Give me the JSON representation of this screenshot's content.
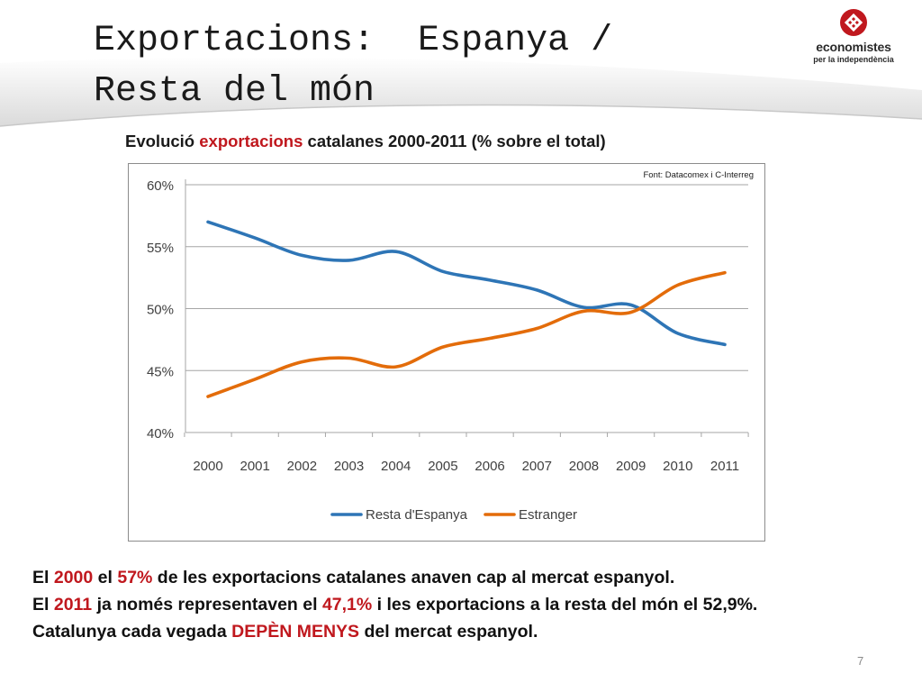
{
  "slide": {
    "title_line1": "Exportacions:  Espanya /",
    "title_line2": "Resta del món",
    "page_number": "7"
  },
  "logo": {
    "name": "economistes",
    "tagline": "per la independència",
    "colors": {
      "mark": "#c0181e",
      "text": "#2a2a2a"
    }
  },
  "chart_heading": {
    "part1": "Evolució ",
    "part2": "exportacions",
    "part3": " catalanes 2000-2011  (% sobre el total)"
  },
  "chart_data": {
    "type": "line",
    "title": "Evolució exportacions catalanes 2000-2011 (% sobre el total)",
    "source_note": "Font: Datacomex i C-Interreg",
    "x": [
      "2000",
      "2001",
      "2002",
      "2003",
      "2004",
      "2005",
      "2006",
      "2007",
      "2008",
      "2009",
      "2010",
      "2011"
    ],
    "series": [
      {
        "name": "Resta d'Espanya",
        "color": "#2e75b6",
        "values": [
          57.0,
          55.7,
          54.3,
          53.9,
          54.6,
          53.0,
          52.3,
          51.5,
          50.1,
          50.3,
          48.0,
          47.1
        ]
      },
      {
        "name": "Estranger",
        "color": "#e36c0a",
        "values": [
          42.9,
          44.3,
          45.7,
          46.0,
          45.3,
          46.9,
          47.6,
          48.4,
          49.8,
          49.7,
          51.9,
          52.9
        ]
      }
    ],
    "y_ticks": [
      "40%",
      "45%",
      "50%",
      "55%",
      "60%"
    ],
    "y_tick_values": [
      40,
      45,
      50,
      55,
      60
    ],
    "ylim": [
      40,
      60
    ],
    "grid": true,
    "legend_position": "bottom",
    "xlabel": "",
    "ylabel": ""
  },
  "summary": {
    "l1_a": "El ",
    "l1_b": "2000",
    "l1_c": " el ",
    "l1_d": "57%",
    "l1_e": " de les exportacions catalanes anaven cap al mercat espanyol.",
    "l2_a": "El ",
    "l2_b": "2011",
    "l2_c": " ja només representaven el ",
    "l2_d": "47,1%",
    "l2_e": " i les exportacions a la resta del món el 52,9%.",
    "l3_a": "Catalunya cada vegada ",
    "l3_b": "DEPÈN MENYS",
    "l3_c": " del mercat espanyol.",
    "highlight_color": "#c0181e"
  }
}
